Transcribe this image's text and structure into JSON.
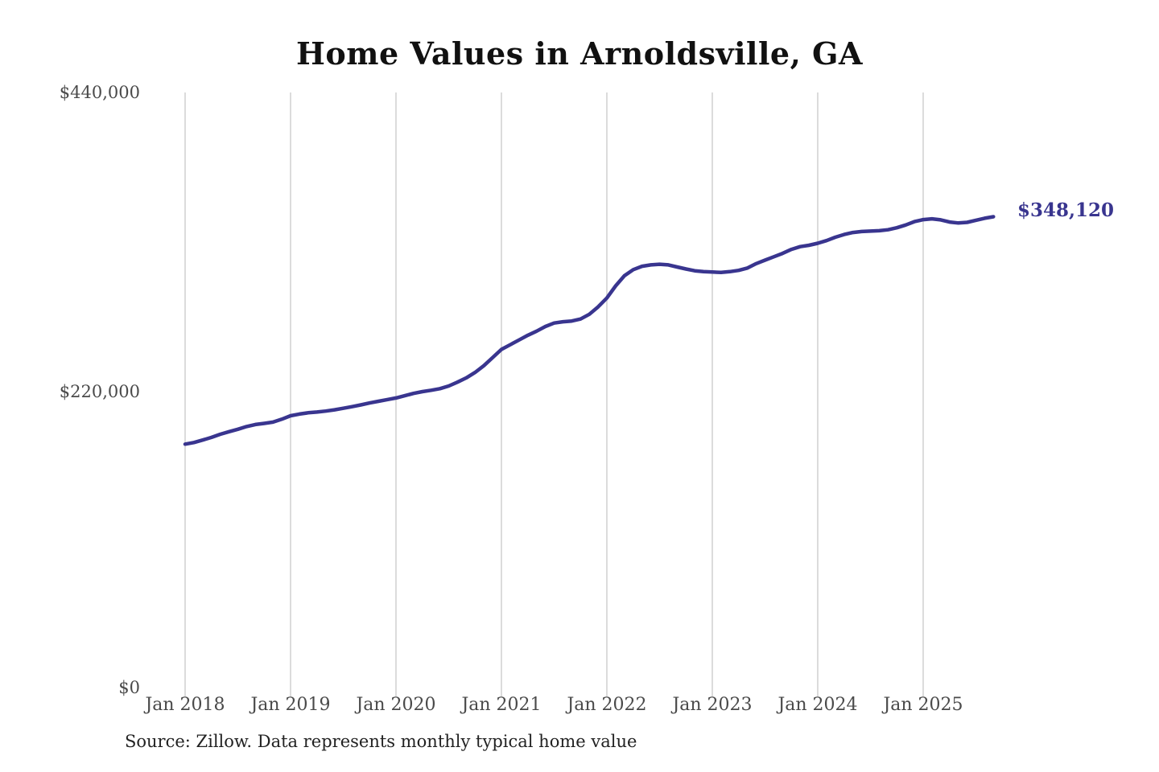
{
  "title": "Home Values in Arnoldsville, GA",
  "current_value_label": "$348,120",
  "source_note": "Source: Zillow. Data represents monthly typical home value",
  "colors": {
    "line": "#39358f",
    "value_label": "#39358f",
    "grid": "#cccccc",
    "axis_text": "#4a4a4a",
    "title_text": "#111111",
    "background": "#ffffff"
  },
  "chart_data": {
    "type": "line",
    "title": "Home Values in Arnoldsville, GA",
    "xlabel": "",
    "ylabel": "",
    "x_frequency": "monthly",
    "x_start": "2018-01",
    "x_end": "2025-09",
    "x_tick_labels": [
      "Jan 2018",
      "Jan 2019",
      "Jan 2020",
      "Jan 2021",
      "Jan 2022",
      "Jan 2023",
      "Jan 2024",
      "Jan 2025"
    ],
    "y_tick_labels": [
      "$0",
      "$220,000",
      "$440,000"
    ],
    "y_tick_values": [
      0,
      220000,
      440000
    ],
    "ylim": [
      0,
      440000
    ],
    "grid": "vertical-only",
    "legend": "none",
    "end_annotation": {
      "text": "$348,120",
      "value": 348120
    },
    "series": [
      {
        "name": "Typical home value",
        "values": [
          180000,
          181200,
          183000,
          185000,
          187300,
          189200,
          191000,
          193000,
          194500,
          195300,
          196300,
          198400,
          201000,
          202200,
          203200,
          203700,
          204400,
          205400,
          206500,
          207700,
          209000,
          210400,
          211700,
          212900,
          214100,
          215800,
          217500,
          218800,
          219800,
          221000,
          223000,
          225800,
          229000,
          233000,
          238000,
          244000,
          250000,
          253500,
          257000,
          260500,
          263500,
          267000,
          269500,
          270500,
          271000,
          272500,
          276000,
          281500,
          288000,
          297000,
          304500,
          309000,
          311500,
          312500,
          313000,
          312500,
          311000,
          309500,
          308200,
          307500,
          307200,
          307000,
          307500,
          308500,
          310200,
          313500,
          316000,
          318500,
          321000,
          324000,
          326000,
          327000,
          328500,
          330500,
          333000,
          335000,
          336500,
          337200,
          337500,
          337800,
          338500,
          340000,
          342000,
          344500,
          346000,
          346600,
          345800,
          344200,
          343500,
          344000,
          345500,
          347000,
          348120
        ]
      }
    ]
  }
}
